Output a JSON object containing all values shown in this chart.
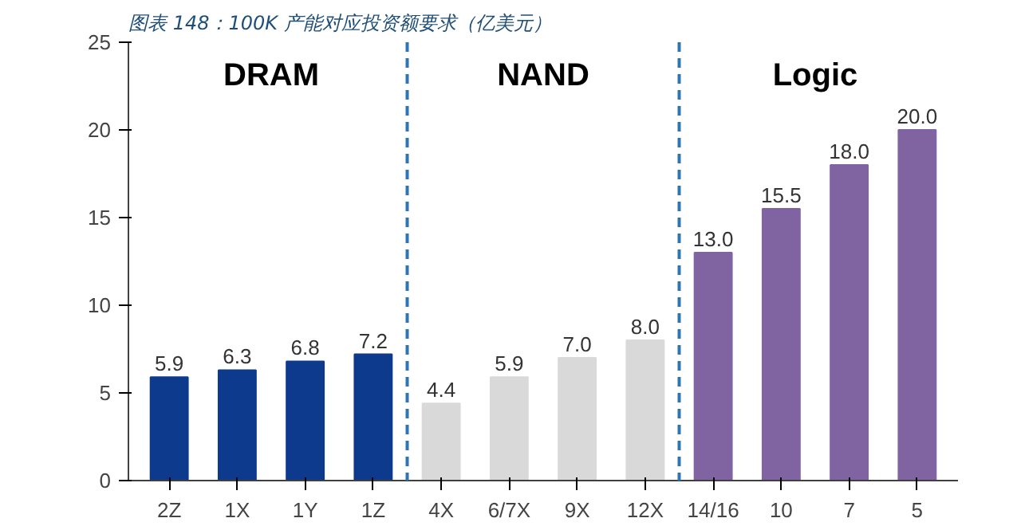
{
  "chart_data": {
    "type": "bar",
    "title": "图表 148：100K 产能对应投资额要求（亿美元）",
    "categories": [
      "2Z",
      "1X",
      "1Y",
      "1Z",
      "4X",
      "6/7X",
      "9X",
      "12X",
      "14/16",
      "10",
      "7",
      "5"
    ],
    "values": [
      5.9,
      6.3,
      6.8,
      7.2,
      4.4,
      5.9,
      7.0,
      8.0,
      13.0,
      15.5,
      18.0,
      20.0
    ],
    "value_labels": [
      "5.9",
      "6.3",
      "6.8",
      "7.2",
      "4.4",
      "5.9",
      "7.0",
      "8.0",
      "13.0",
      "15.5",
      "18.0",
      "20.0"
    ],
    "colors": [
      "#0d3a8c",
      "#0d3a8c",
      "#0d3a8c",
      "#0d3a8c",
      "#d9d9d9",
      "#d9d9d9",
      "#d9d9d9",
      "#d9d9d9",
      "#8064a2",
      "#8064a2",
      "#8064a2",
      "#8064a2"
    ],
    "ylim": [
      0,
      25
    ],
    "yticks": [
      0,
      5,
      10,
      15,
      20,
      25
    ],
    "grid": false,
    "annotations": [
      "DRAM",
      "NAND",
      "Logic"
    ]
  }
}
